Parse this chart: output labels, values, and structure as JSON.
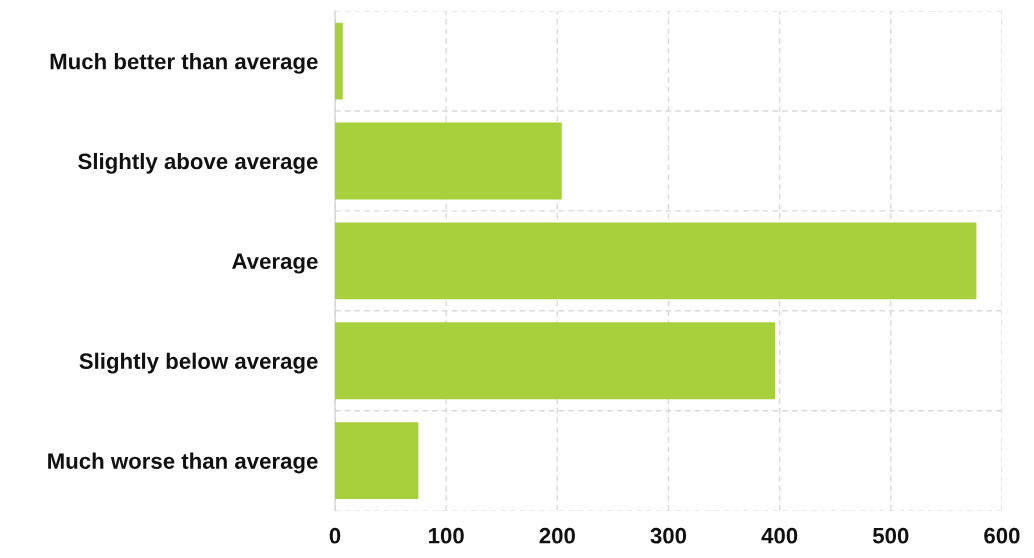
{
  "chart_data": {
    "type": "bar",
    "orientation": "horizontal",
    "categories": [
      "Much better than average",
      "Slightly above average",
      "Average",
      "Slightly below average",
      "Much worse than average"
    ],
    "values": [
      7,
      204,
      577,
      396,
      75
    ],
    "color": "#a8cf3c",
    "xlim": [
      0,
      600
    ],
    "xticks": [
      0,
      100,
      200,
      300,
      400,
      500,
      600
    ],
    "grid": true
  }
}
